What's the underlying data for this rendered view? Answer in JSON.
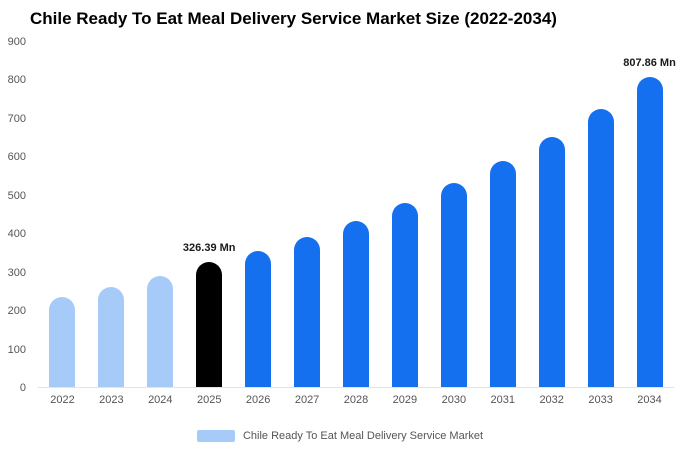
{
  "title": "Chile Ready To Eat Meal Delivery Service Market Size (2022-2034)",
  "legend": {
    "label": "Chile Ready To Eat Meal Delivery Service Market",
    "swatch_color": "#a7cbf9"
  },
  "colors": {
    "historical_bar": "#a7cbf9",
    "highlight_bar": "#000000",
    "forecast_bar": "#1570ef",
    "axis_text": "#555555",
    "title_text": "#000000"
  },
  "chart_data": {
    "type": "bar",
    "title": "Chile Ready To Eat Meal Delivery Service Market Size (2022-2034)",
    "xlabel": "",
    "ylabel": "",
    "categories": [
      "2022",
      "2023",
      "2024",
      "2025",
      "2026",
      "2027",
      "2028",
      "2029",
      "2030",
      "2031",
      "2032",
      "2033",
      "2034"
    ],
    "values": [
      235,
      260,
      290,
      326.39,
      355,
      392,
      433,
      480,
      532,
      590,
      652,
      724,
      807.86
    ],
    "bar_colors": [
      "#a7cbf9",
      "#a7cbf9",
      "#a7cbf9",
      "#000000",
      "#1570ef",
      "#1570ef",
      "#1570ef",
      "#1570ef",
      "#1570ef",
      "#1570ef",
      "#1570ef",
      "#1570ef",
      "#1570ef"
    ],
    "ylim": [
      0,
      900
    ],
    "yticks": [
      0,
      100,
      200,
      300,
      400,
      500,
      600,
      700,
      800,
      900
    ],
    "grid": false,
    "legend_position": "bottom",
    "annotations": [
      {
        "category": "2025",
        "text": "326.39 Mn"
      },
      {
        "category": "2034",
        "text": "807.86 Mn"
      }
    ]
  }
}
